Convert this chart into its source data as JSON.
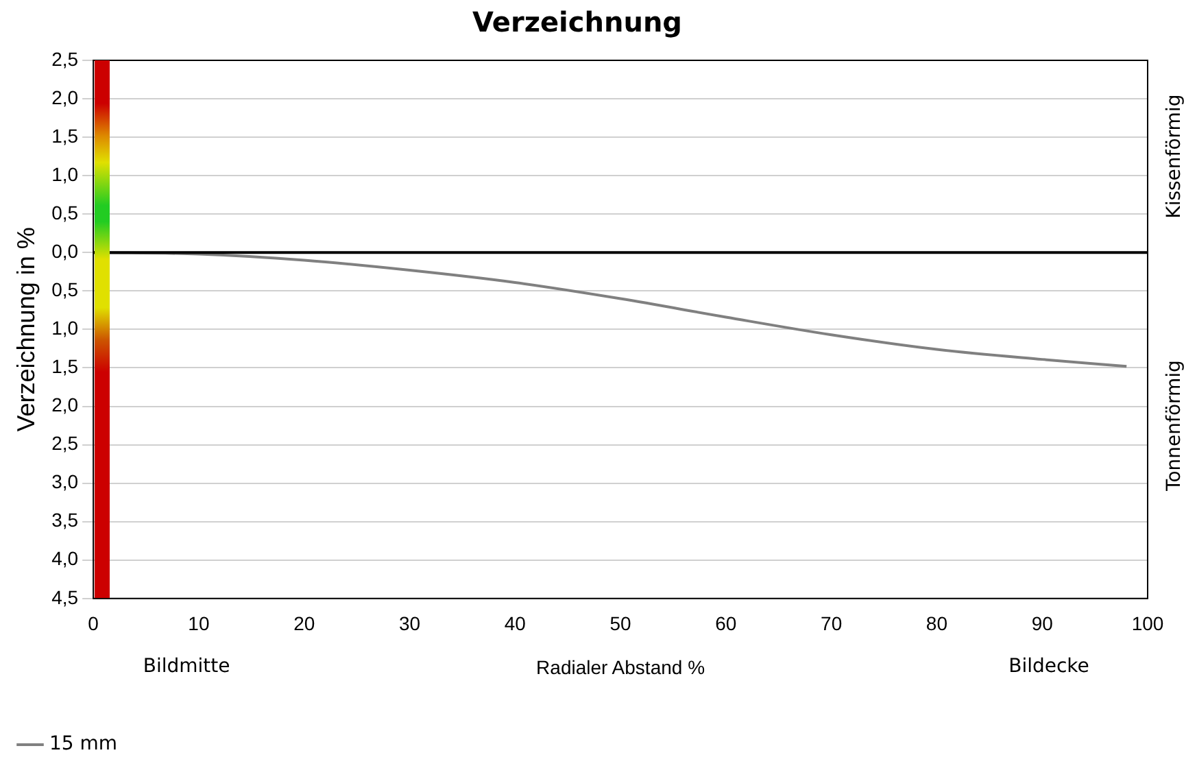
{
  "chart_data": {
    "type": "line",
    "title": "Verzeichnung",
    "xlabel": "Radialer Abstand %",
    "ylabel": "Verzeichnung in %",
    "x": [
      0,
      10,
      20,
      30,
      40,
      50,
      60,
      70,
      80,
      90,
      98
    ],
    "series": [
      {
        "name": "15 mm",
        "color": "#808080",
        "values": [
          0,
          -0.02,
          -0.1,
          -0.23,
          -0.39,
          -0.6,
          -0.84,
          -1.07,
          -1.26,
          -1.39,
          -1.48
        ]
      }
    ],
    "xlim": [
      0,
      100
    ],
    "xticks": [
      0,
      10,
      20,
      30,
      40,
      50,
      60,
      70,
      80,
      90,
      100
    ],
    "ylim": [
      -4.5,
      2.5
    ],
    "yticks": [
      {
        "value": 2.5,
        "label": "2,5"
      },
      {
        "value": 2,
        "label": "2,0"
      },
      {
        "value": 1.5,
        "label": "1,5"
      },
      {
        "value": 1,
        "label": "1,0"
      },
      {
        "value": 0.5,
        "label": "0,5"
      },
      {
        "value": 0,
        "label": "0,0"
      },
      {
        "value": -0.5,
        "label": "0,5"
      },
      {
        "value": -1,
        "label": "1,0"
      },
      {
        "value": -1.5,
        "label": "1,5"
      },
      {
        "value": -2,
        "label": "2,0"
      },
      {
        "value": -2.5,
        "label": "2,5"
      },
      {
        "value": -3,
        "label": "3,0"
      },
      {
        "value": -3.5,
        "label": "3,5"
      },
      {
        "value": -4,
        "label": "4,0"
      },
      {
        "value": -4.5,
        "label": "4,5"
      }
    ],
    "ref_lines": [
      {
        "axis": "y",
        "value": 0,
        "color": "#000000"
      }
    ],
    "annotations": [
      "Bildmitte",
      "Bildecke",
      "Kissenförmig",
      "Tonnenförmig"
    ],
    "grid": "y",
    "legend": "bottom left",
    "marker": "none",
    "line_style": "solid"
  }
}
